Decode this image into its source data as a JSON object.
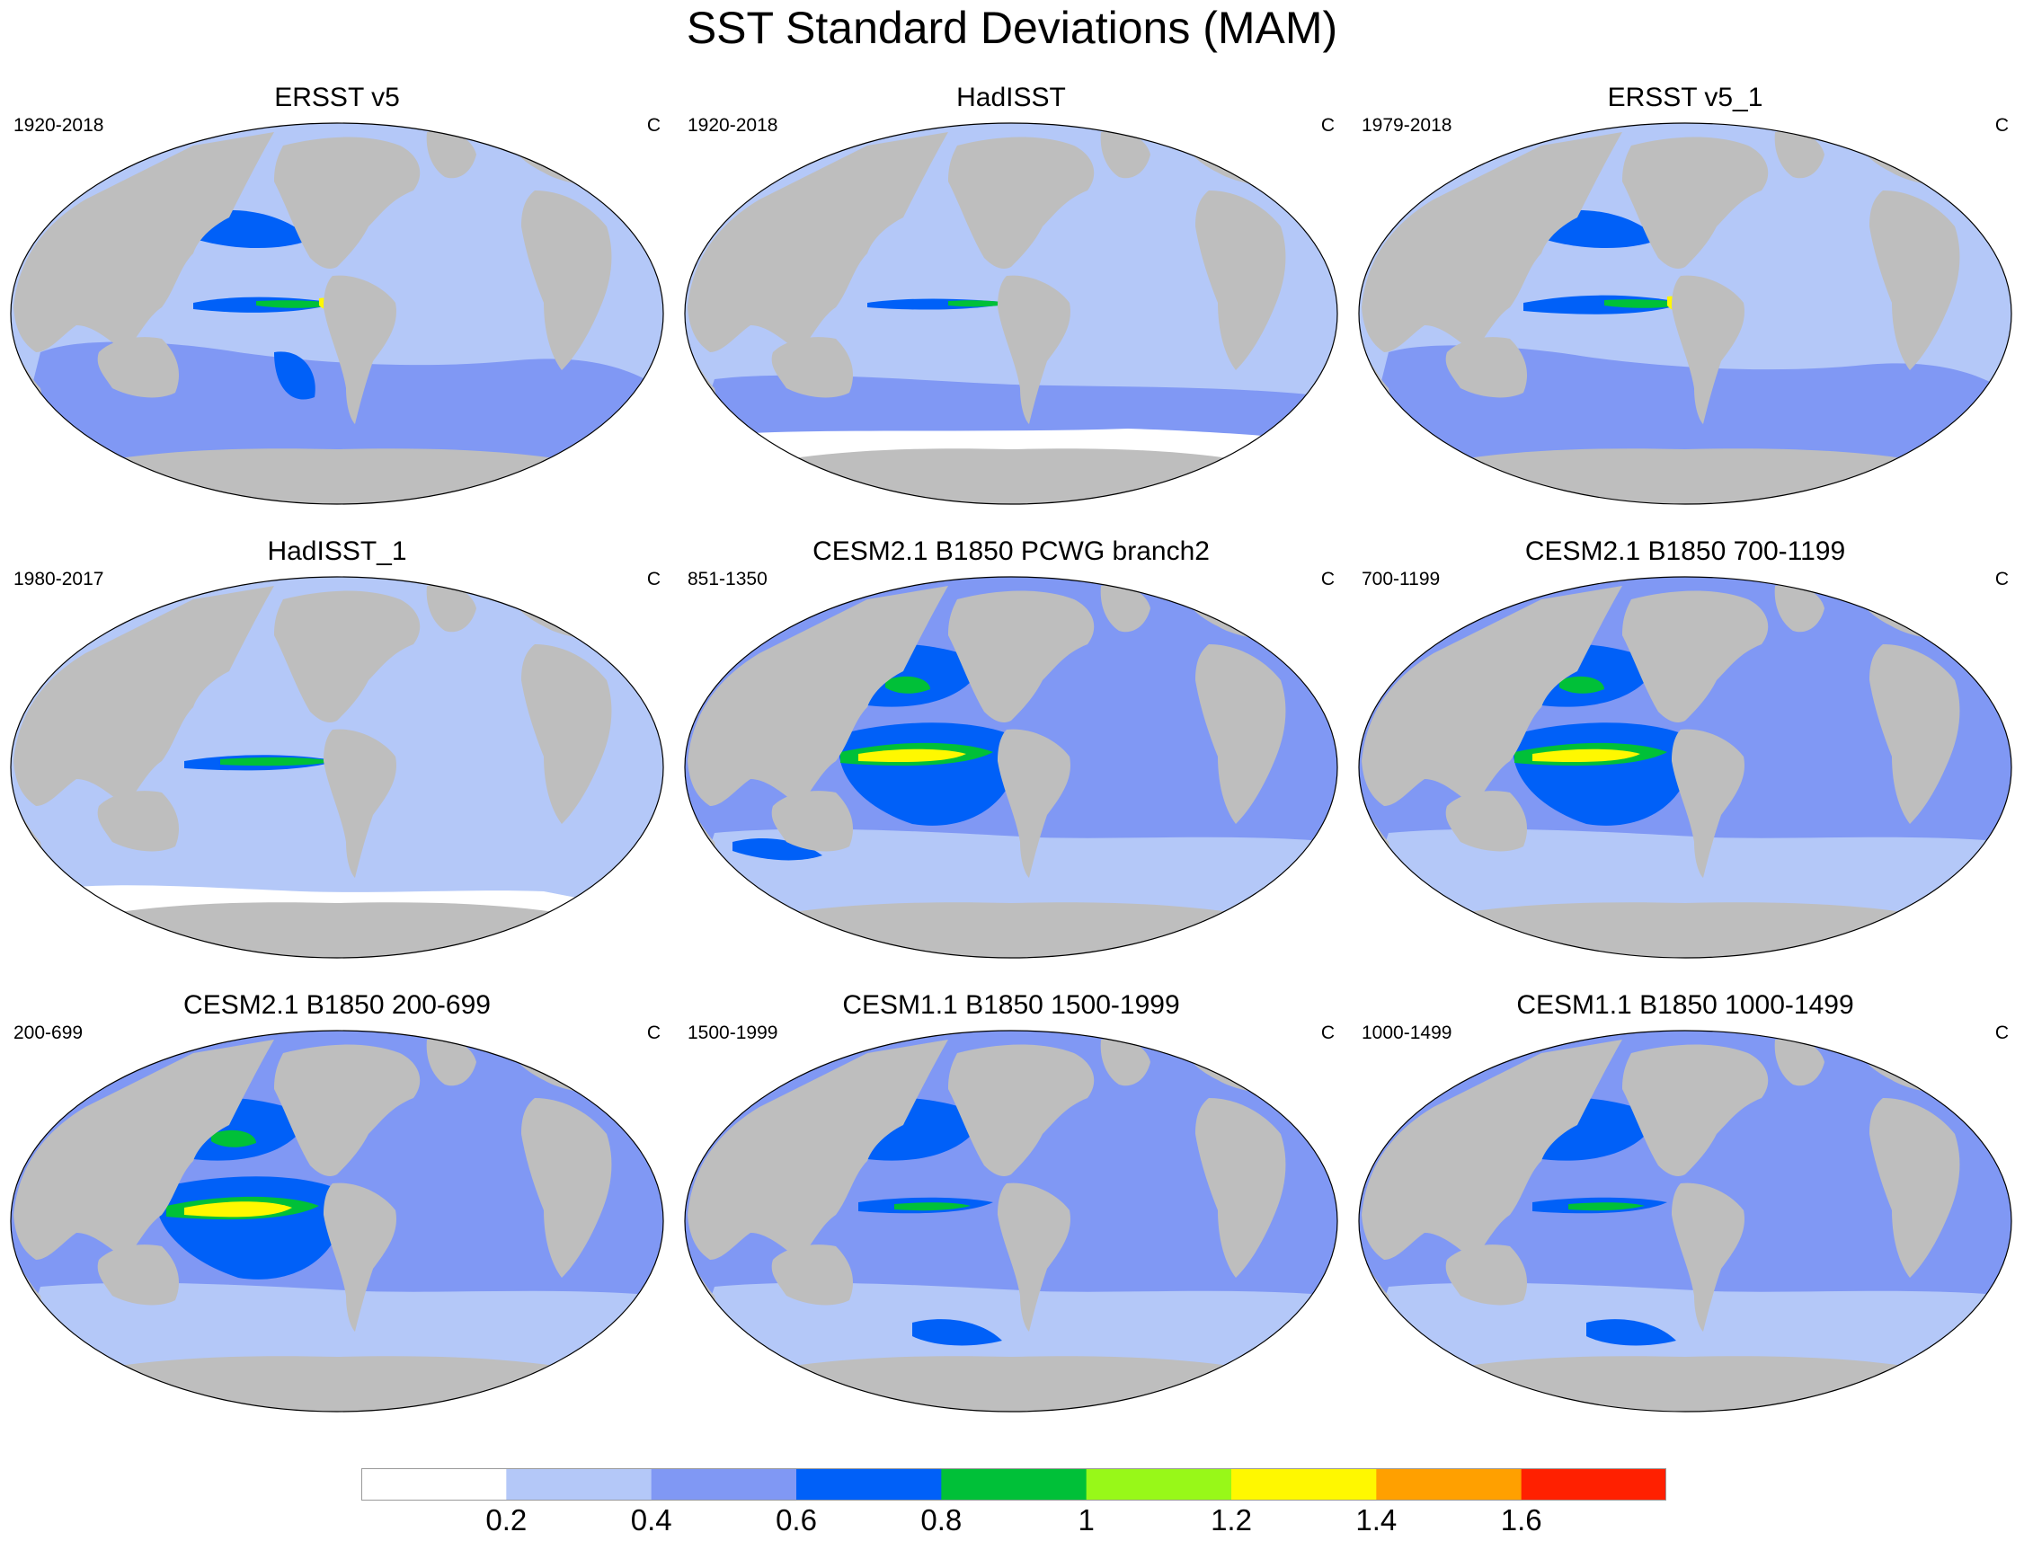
{
  "figure": {
    "title": "SST Standard Deviations (MAM)",
    "units": "C"
  },
  "panels": [
    {
      "title": "ERSST v5",
      "years": "1920-2018",
      "units": "C"
    },
    {
      "title": "HadISST",
      "years": "1920-2018",
      "units": "C"
    },
    {
      "title": "ERSST v5_1",
      "years": "1979-2018",
      "units": "C"
    },
    {
      "title": "HadISST_1",
      "years": "1980-2017",
      "units": "C"
    },
    {
      "title": "CESM2.1 B1850 PCWG branch2",
      "years": "851-1350",
      "units": "C"
    },
    {
      "title": "CESM2.1 B1850 700-1199",
      "years": "700-1199",
      "units": "C"
    },
    {
      "title": "CESM2.1 B1850 200-699",
      "years": "200-699",
      "units": "C"
    },
    {
      "title": "CESM1.1 B1850 1500-1999",
      "years": "1500-1999",
      "units": "C"
    },
    {
      "title": "CESM1.1 B1850 1000-1499",
      "years": "1000-1499",
      "units": "C"
    }
  ],
  "colorbar": {
    "labels": [
      "0.2",
      "0.4",
      "0.6",
      "0.8",
      "1",
      "1.2",
      "1.4",
      "1.6"
    ],
    "colors": [
      "#ffffff",
      "#b4c8f8",
      "#8098f4",
      "#0060f8",
      "#00c038",
      "#98f818",
      "#fff800",
      "#ffa000",
      "#ff2000"
    ]
  },
  "colors": {
    "land": "#bebebe",
    "coast": "#ffffff",
    "outline": "#000000"
  }
}
